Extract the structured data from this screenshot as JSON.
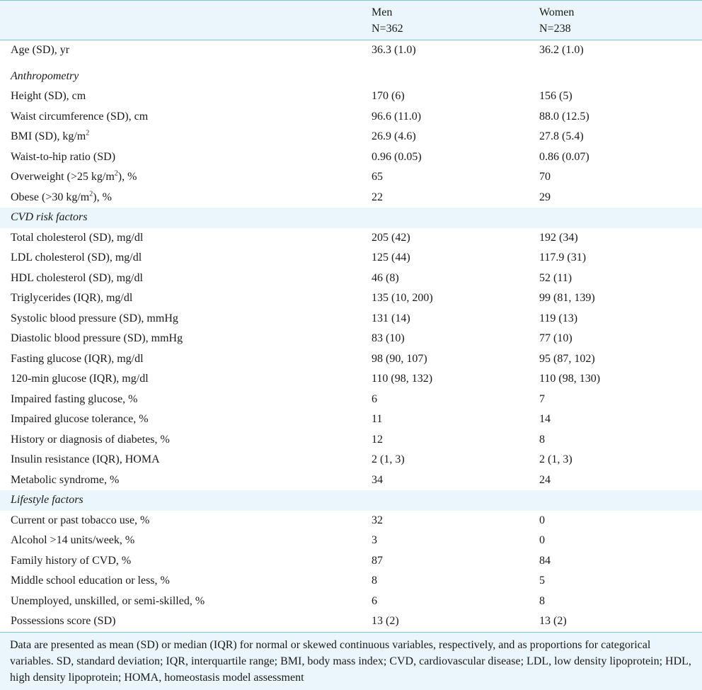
{
  "header": {
    "col_men": "Men",
    "col_men_n": "N=362",
    "col_women": "Women",
    "col_women_n": "N=238"
  },
  "rows": [
    {
      "type": "data",
      "label": "Age (SD), yr",
      "men": "36.3 (1.0)",
      "women": "36.2 (1.0)"
    },
    {
      "type": "section",
      "label": "Anthropometry"
    },
    {
      "type": "data",
      "label": "Height (SD), cm",
      "men": "170 (6)",
      "women": "156 (5)"
    },
    {
      "type": "data",
      "label": "Waist circumference (SD), cm",
      "men": "96.6 (11.0)",
      "women": "88.0 (12.5)"
    },
    {
      "type": "data",
      "label": "BMI (SD), kg/m",
      "sup": "2",
      "men": "26.9 (4.6)",
      "women": "27.8 (5.4)"
    },
    {
      "type": "data",
      "label": "Waist-to-hip ratio (SD)",
      "men": "0.96 (0.05)",
      "women": "0.86 (0.07)"
    },
    {
      "type": "data",
      "label": "Overweight (>25 kg/m",
      "sup": "2",
      "after": "), %",
      "men": "65",
      "women": "70"
    },
    {
      "type": "data",
      "label": "Obese (>30 kg/m",
      "sup": "2",
      "after": "), %",
      "men": "22",
      "women": "29"
    },
    {
      "type": "section",
      "label": "CVD risk factors",
      "shade": true
    },
    {
      "type": "data",
      "label": "Total cholesterol (SD), mg/dl",
      "men": "205 (42)",
      "women": "192 (34)"
    },
    {
      "type": "data",
      "label": "LDL cholesterol (SD), mg/dl",
      "men": "125 (44)",
      "women": "117.9 (31)"
    },
    {
      "type": "data",
      "label": "HDL cholesterol (SD), mg/dl",
      "men": "46 (8)",
      "women": "52 (11)"
    },
    {
      "type": "data",
      "label": "Triglycerides (IQR), mg/dl",
      "men": "135 (10, 200)",
      "women": "99 (81, 139)"
    },
    {
      "type": "data",
      "label": "Systolic blood pressure (SD), mmHg",
      "men": "131 (14)",
      "women": "119 (13)"
    },
    {
      "type": "data",
      "label": "Diastolic blood pressure (SD), mmHg",
      "men": "83 (10)",
      "women": "77 (10)"
    },
    {
      "type": "data",
      "label": "Fasting glucose (IQR), mg/dl",
      "men": "98 (90, 107)",
      "women": "95 (87, 102)"
    },
    {
      "type": "data",
      "label": "120-min glucose (IQR), mg/dl",
      "men": "110 (98, 132)",
      "women": "110 (98, 130)"
    },
    {
      "type": "data",
      "label": "Impaired fasting glucose, %",
      "men": "6",
      "women": "7"
    },
    {
      "type": "data",
      "label": "Impaired glucose tolerance, %",
      "men": "11",
      "women": "14"
    },
    {
      "type": "data",
      "label": "History or diagnosis of diabetes, %",
      "men": "12",
      "women": "8"
    },
    {
      "type": "data",
      "label": "Insulin resistance (IQR), HOMA",
      "men": "2 (1, 3)",
      "women": "2 (1, 3)"
    },
    {
      "type": "data",
      "label": "Metabolic syndrome, %",
      "men": "34",
      "women": "24"
    },
    {
      "type": "section",
      "label": "Lifestyle factors",
      "shade": true
    },
    {
      "type": "data",
      "label": "Current or past tobacco use, %",
      "men": "32",
      "women": "0"
    },
    {
      "type": "data",
      "label": "Alcohol >14 units/week, %",
      "men": "3",
      "women": "0"
    },
    {
      "type": "data",
      "label": "Family history of CVD, %",
      "men": "87",
      "women": "84"
    },
    {
      "type": "data",
      "label": "Middle school education or less, %",
      "men": "8",
      "women": "5"
    },
    {
      "type": "data",
      "label": "Unemployed, unskilled, or semi-skilled, %",
      "men": "6",
      "women": "8"
    },
    {
      "type": "data",
      "label": "Possessions score (SD)",
      "men": "13 (2)",
      "women": "13 (2)"
    }
  ],
  "footnote": "Data are presented as mean (SD) or median (IQR) for normal or skewed continuous variables, respectively, and as proportions for categorical variables. SD, standard deviation; IQR, interquartile range; BMI, body mass index; CVD, cardiovascular disease; LDL, low density lipoprotein; HDL, high density lipoprotein; HOMA, homeostasis model assessment"
}
